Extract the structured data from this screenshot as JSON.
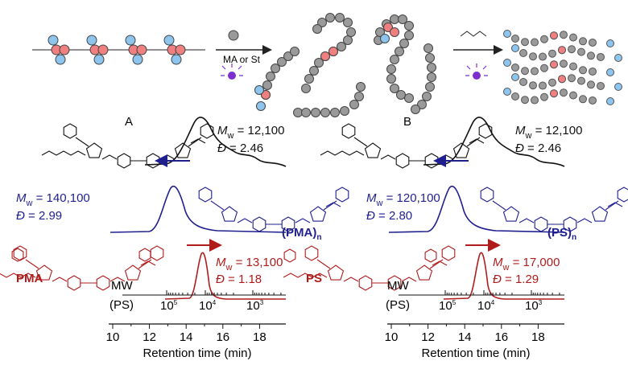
{
  "scheme": {
    "reagent": "MA or St"
  },
  "panels": [
    {
      "label": "A",
      "traces": [
        {
          "mw": {
            "symbol": "M",
            "sub": "w",
            "value": " = 12,100"
          },
          "dispersity": {
            "symbol": "Đ",
            "value": " = 2.46"
          }
        },
        {
          "mw": {
            "symbol": "M",
            "sub": "w",
            "value": " = 140,100"
          },
          "dispersity": {
            "symbol": "Đ",
            "value": " = 2.99"
          }
        },
        {
          "mw": {
            "symbol": "M",
            "sub": "w",
            "value": " = 13,100"
          },
          "dispersity": {
            "symbol": "Đ",
            "value": " = 1.18"
          }
        }
      ],
      "polymer": {
        "name": "(PMA)",
        "sub": "n"
      },
      "monomer": "PMA",
      "mw_axis": {
        "title": "MW",
        "subtitle": "(PS)",
        "ticks": [
          {
            "base": "10",
            "exp": "5"
          },
          {
            "base": "10",
            "exp": "4"
          },
          {
            "base": "10",
            "exp": "3"
          }
        ]
      },
      "rt_axis": {
        "ticks": [
          10,
          12,
          14,
          16,
          18
        ],
        "label": "Retention time (min)"
      }
    },
    {
      "label": "B",
      "traces": [
        {
          "mw": {
            "symbol": "M",
            "sub": "w",
            "value": " = 12,100"
          },
          "dispersity": {
            "symbol": "Đ",
            "value": " = 2.46"
          }
        },
        {
          "mw": {
            "symbol": "M",
            "sub": "w",
            "value": " = 120,100"
          },
          "dispersity": {
            "symbol": "Đ",
            "value": " = 2.80"
          }
        },
        {
          "mw": {
            "symbol": "M",
            "sub": "w",
            "value": " = 17,000"
          },
          "dispersity": {
            "symbol": "Đ",
            "value": " = 1.29"
          }
        }
      ],
      "polymer": {
        "name": "(PS)",
        "sub": "n"
      },
      "monomer": "PS",
      "mw_axis": {
        "title": "MW",
        "subtitle": "(PS)",
        "ticks": [
          {
            "base": "10",
            "exp": "5"
          },
          {
            "base": "10",
            "exp": "4"
          },
          {
            "base": "10",
            "exp": "3"
          }
        ]
      },
      "rt_axis": {
        "ticks": [
          10,
          12,
          14,
          16,
          18
        ],
        "label": "Retention time (min)"
      }
    }
  ]
}
